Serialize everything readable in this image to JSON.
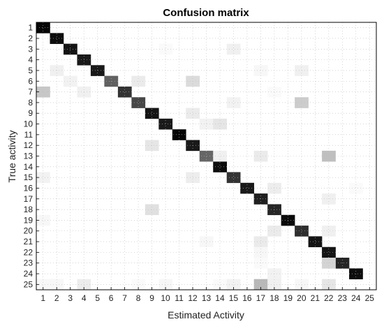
{
  "chart_data": {
    "type": "heatmap",
    "title": "Confusion matrix",
    "xlabel": "Estimated Activity",
    "ylabel": "True activity",
    "x_categories": [
      "1",
      "2",
      "3",
      "4",
      "5",
      "6",
      "7",
      "8",
      "9",
      "10",
      "11",
      "12",
      "13",
      "14",
      "15",
      "16",
      "17",
      "18",
      "19",
      "20",
      "21",
      "22",
      "23",
      "24",
      "25"
    ],
    "y_categories": [
      "1",
      "2",
      "3",
      "4",
      "5",
      "6",
      "7",
      "8",
      "9",
      "10",
      "11",
      "12",
      "13",
      "14",
      "15",
      "16",
      "17",
      "18",
      "19",
      "20",
      "21",
      "22",
      "23",
      "24",
      "25"
    ],
    "value_range": [
      0,
      1
    ],
    "colormap": "white-to-black",
    "grid": true,
    "grid_style": "dotted",
    "cells": [
      [
        1,
        1,
        0.98
      ],
      [
        2,
        2,
        0.95
      ],
      [
        3,
        3,
        0.92
      ],
      [
        4,
        4,
        0.9
      ],
      [
        5,
        5,
        0.9
      ],
      [
        6,
        6,
        0.62
      ],
      [
        7,
        7,
        0.8
      ],
      [
        8,
        8,
        0.72
      ],
      [
        9,
        9,
        0.92
      ],
      [
        10,
        10,
        0.9
      ],
      [
        11,
        11,
        0.98
      ],
      [
        12,
        12,
        0.9
      ],
      [
        13,
        13,
        0.6
      ],
      [
        14,
        14,
        0.95
      ],
      [
        15,
        15,
        0.8
      ],
      [
        16,
        16,
        0.9
      ],
      [
        17,
        17,
        0.88
      ],
      [
        18,
        18,
        0.85
      ],
      [
        19,
        19,
        0.96
      ],
      [
        20,
        20,
        0.82
      ],
      [
        21,
        21,
        0.92
      ],
      [
        22,
        22,
        0.92
      ],
      [
        23,
        23,
        0.86
      ],
      [
        24,
        24,
        0.95
      ],
      [
        3,
        10,
        0.02
      ],
      [
        3,
        15,
        0.06
      ],
      [
        5,
        2,
        0.06
      ],
      [
        5,
        17,
        0.03
      ],
      [
        5,
        20,
        0.06
      ],
      [
        6,
        3,
        0.05
      ],
      [
        6,
        8,
        0.08
      ],
      [
        6,
        12,
        0.14
      ],
      [
        7,
        1,
        0.22
      ],
      [
        7,
        4,
        0.06
      ],
      [
        7,
        18,
        0.02
      ],
      [
        8,
        15,
        0.05
      ],
      [
        8,
        20,
        0.2
      ],
      [
        9,
        12,
        0.08
      ],
      [
        10,
        13,
        0.05
      ],
      [
        10,
        14,
        0.1
      ],
      [
        12,
        9,
        0.1
      ],
      [
        13,
        14,
        0.06
      ],
      [
        13,
        17,
        0.08
      ],
      [
        13,
        22,
        0.25
      ],
      [
        15,
        1,
        0.05
      ],
      [
        15,
        12,
        0.07
      ],
      [
        16,
        18,
        0.07
      ],
      [
        16,
        24,
        0.02
      ],
      [
        17,
        22,
        0.06
      ],
      [
        18,
        9,
        0.12
      ],
      [
        19,
        1,
        0.03
      ],
      [
        20,
        18,
        0.08
      ],
      [
        20,
        22,
        0.06
      ],
      [
        21,
        13,
        0.03
      ],
      [
        21,
        17,
        0.08
      ],
      [
        22,
        17,
        0.03
      ],
      [
        23,
        17,
        0.02
      ],
      [
        23,
        22,
        0.17
      ],
      [
        24,
        18,
        0.05
      ],
      [
        25,
        1,
        0.03
      ],
      [
        25,
        2,
        0.03
      ],
      [
        25,
        4,
        0.07
      ],
      [
        25,
        8,
        0.02
      ],
      [
        25,
        10,
        0.03
      ],
      [
        25,
        14,
        0.02
      ],
      [
        25,
        15,
        0.05
      ],
      [
        25,
        17,
        0.28
      ],
      [
        25,
        18,
        0.06
      ],
      [
        25,
        20,
        0.03
      ],
      [
        25,
        22,
        0.1
      ]
    ]
  }
}
